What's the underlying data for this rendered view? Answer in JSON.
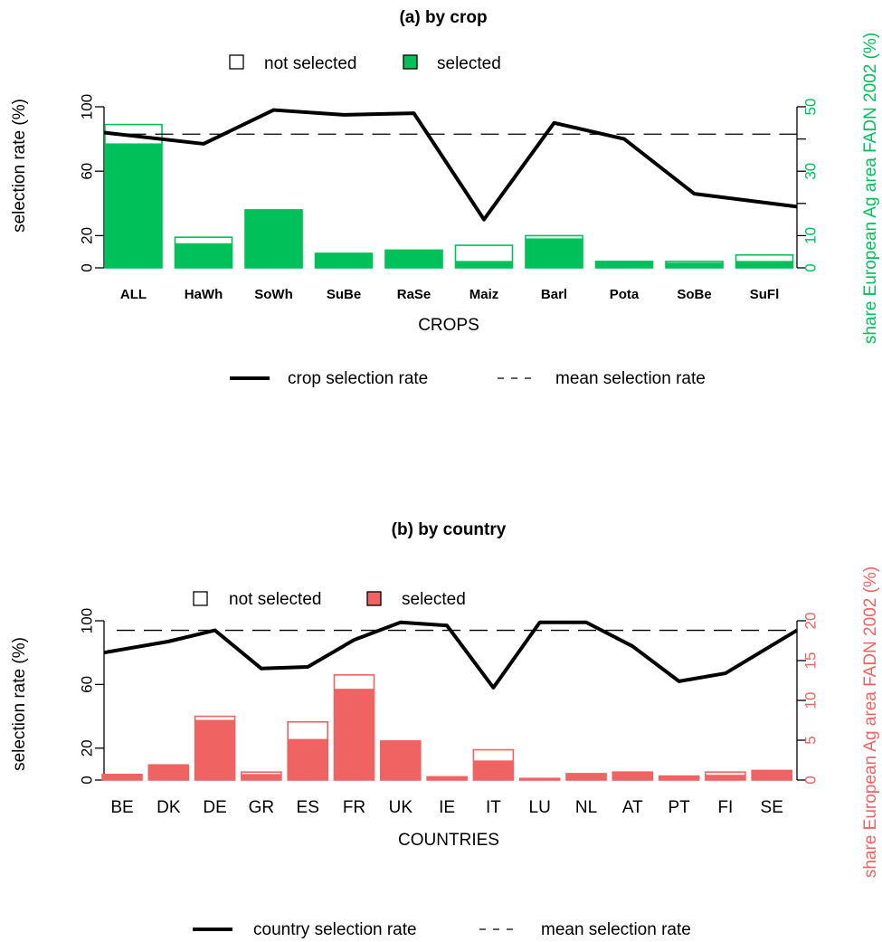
{
  "chart_data": [
    {
      "type": "bar",
      "title": "(a) by crop",
      "xlabel": "CROPS",
      "ylabel": "selection rate (%)",
      "y2label": "share European Ag area FADN 2002 (%)",
      "ylim": [
        0,
        100
      ],
      "yticks": [
        0,
        20,
        60,
        100
      ],
      "y2lim": [
        0,
        50
      ],
      "y2ticks": [
        0,
        10,
        30,
        50
      ],
      "categories": [
        "ALL",
        "HaWh",
        "SoWh",
        "SuBe",
        "RaSe",
        "Maiz",
        "Barl",
        "Pota",
        "SoBe",
        "SuFl"
      ],
      "bar_total_share": [
        44.5,
        9.5,
        18,
        4.5,
        5.5,
        7,
        10,
        2,
        2,
        4
      ],
      "bar_selected_share": [
        38.5,
        7.5,
        18,
        4.5,
        5.5,
        2,
        9,
        2,
        1.5,
        2
      ],
      "line_selection_rate": [
        84,
        77,
        98,
        95,
        96,
        30,
        90,
        80,
        46,
        38
      ],
      "mean_selection_rate": 83,
      "legend_top": [
        "not selected",
        "selected"
      ],
      "legend_bottom": [
        "crop selection rate",
        "mean selection rate"
      ],
      "color": "#00c05a"
    },
    {
      "type": "bar",
      "title": "(b) by country",
      "xlabel": "COUNTRIES",
      "ylabel": "selection rate (%)",
      "y2label": "share European Ag area FADN 2002 (%)",
      "ylim": [
        0,
        100
      ],
      "yticks": [
        0,
        20,
        60,
        100
      ],
      "y2lim": [
        0,
        20
      ],
      "y2ticks": [
        0,
        5,
        10,
        15,
        20
      ],
      "categories": [
        "BE",
        "DK",
        "DE",
        "GR",
        "ES",
        "FR",
        "UK",
        "IE",
        "IT",
        "LU",
        "NL",
        "AT",
        "PT",
        "FI",
        "SE"
      ],
      "bar_total_share": [
        0.7,
        1.9,
        8,
        1,
        7.3,
        13.2,
        4.9,
        0.4,
        3.8,
        0.2,
        0.8,
        1,
        0.5,
        1,
        1.2
      ],
      "bar_selected_share": [
        0.7,
        1.9,
        7.5,
        0.7,
        5.1,
        11.4,
        4.9,
        0.4,
        2.4,
        0.2,
        0.8,
        1,
        0.5,
        0.6,
        1.2
      ],
      "line_selection_rate": [
        80,
        87,
        94,
        70,
        71,
        88,
        99,
        97,
        58,
        99,
        99,
        84,
        62,
        67,
        94
      ],
      "mean_selection_rate": 94,
      "legend_top": [
        "not selected",
        "selected"
      ],
      "legend_bottom": [
        "country selection rate",
        "mean selection rate"
      ],
      "color": "#ef6363"
    }
  ]
}
